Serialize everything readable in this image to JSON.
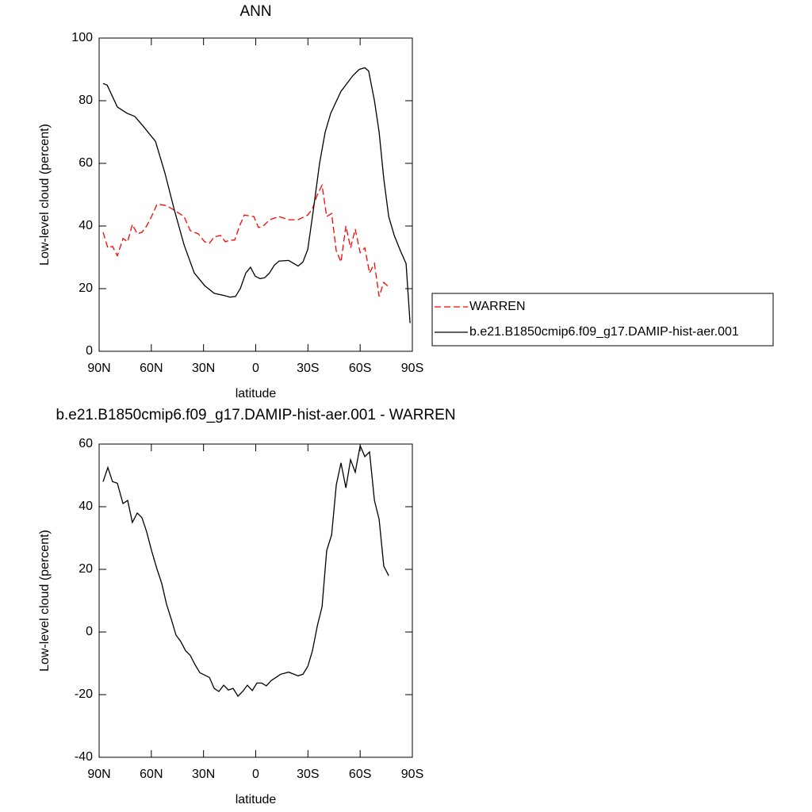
{
  "chart_data": [
    {
      "type": "line",
      "title": "ANN",
      "xlabel": "latitude",
      "ylabel": "Low-level cloud (percent)",
      "xlim": [
        90,
        -90
      ],
      "ylim": [
        0,
        100
      ],
      "xticks": [
        {
          "value": 90,
          "label": "90N"
        },
        {
          "value": 60,
          "label": "60N"
        },
        {
          "value": 30,
          "label": "30N"
        },
        0,
        {
          "value": -30,
          "label": "30S"
        },
        {
          "value": -60,
          "label": "60S"
        },
        {
          "value": -90,
          "label": "90S"
        }
      ],
      "yticks": [
        0,
        20,
        40,
        60,
        80,
        100
      ],
      "legend": "right",
      "series": [
        {
          "name": "WARREN",
          "color": "#ff0000",
          "dash": true,
          "x": [
            87.7,
            85.0,
            82.3,
            79.5,
            76.3,
            73.6,
            70.9,
            68.1,
            65.4,
            62.7,
            59.9,
            56.7,
            51.3,
            46.7,
            41.2,
            37.6,
            33.0,
            29.4,
            26.6,
            23.9,
            20.3,
            17.5,
            14.8,
            12.1,
            9.3,
            6.6,
            1.1,
            -1.6,
            -4.3,
            -8.0,
            -13.4,
            -18.9,
            -24.4,
            -29.9,
            -32.6,
            -35.4,
            -38.1,
            -40.8,
            -43.6,
            -46.3,
            -49.0,
            -51.8,
            -54.5,
            -57.2,
            -60.0,
            -62.7,
            -65.4,
            -68.2,
            -70.9,
            -73.6,
            -76.4
          ],
          "values": [
            38,
            33,
            33.5,
            30.5,
            36,
            35,
            40.5,
            37.5,
            38,
            40,
            43,
            47,
            46.5,
            45,
            43,
            38.5,
            37.5,
            35,
            34.5,
            36.5,
            37,
            35,
            35.5,
            35.5,
            40,
            43.5,
            43,
            39.5,
            40,
            42,
            43,
            42,
            42,
            43.5,
            45.5,
            50,
            53,
            43,
            44,
            32,
            28.5,
            40,
            33,
            39,
            31.5,
            33,
            25,
            28,
            17.5,
            22,
            20.5
          ]
        },
        {
          "name": "b.e21.B1850cmip6.f09_g17.DAMIP-hist-aer.001",
          "color": "#000000",
          "dash": false,
          "x": [
            87.7,
            85.4,
            79.5,
            74.0,
            69.5,
            64.9,
            57.6,
            52.2,
            46.7,
            41.2,
            35.3,
            29.4,
            23.9,
            18.0,
            14.8,
            11.6,
            8.9,
            5.7,
            3.0,
            0.3,
            -2.5,
            -5.2,
            -7.9,
            -10.7,
            -13.4,
            -18.9,
            -24.4,
            -27.1,
            -29.9,
            -33.1,
            -36.7,
            -39.9,
            -43.1,
            -49.0,
            -55.8,
            -59.5,
            -62.7,
            -64.9,
            -68.2,
            -70.9,
            -73.6,
            -76.4,
            -79.6,
            -83.2,
            -86.4,
            -88.7
          ],
          "values": [
            85.5,
            85,
            78,
            76,
            75,
            72,
            67,
            57,
            45,
            34,
            25,
            21,
            18.5,
            17.8,
            17.3,
            17.5,
            20,
            25,
            26.8,
            24,
            23.2,
            23.5,
            25,
            27.5,
            28.8,
            29,
            27.2,
            28.5,
            32.5,
            45,
            60,
            70,
            76,
            83,
            88,
            90,
            90.5,
            89.5,
            80,
            70,
            55,
            43,
            37,
            32,
            28,
            9
          ]
        }
      ]
    },
    {
      "type": "line",
      "title": "b.e21.B1850cmip6.f09_g17.DAMIP-hist-aer.001 - WARREN",
      "xlabel": "latitude",
      "ylabel": "Low-level cloud (percent)",
      "xlim": [
        90,
        -90
      ],
      "ylim": [
        -40,
        60
      ],
      "xticks": [
        {
          "value": 90,
          "label": "90N"
        },
        {
          "value": 60,
          "label": "60N"
        },
        {
          "value": 30,
          "label": "30N"
        },
        0,
        {
          "value": -30,
          "label": "30S"
        },
        {
          "value": -60,
          "label": "60S"
        },
        {
          "value": -90,
          "label": "90S"
        }
      ],
      "yticks": [
        -40,
        -20,
        0,
        20,
        40,
        60
      ],
      "series": [
        {
          "color": "#000000",
          "dash": false,
          "x": [
            87.7,
            85.0,
            82.3,
            79.5,
            76.3,
            73.6,
            70.9,
            68.1,
            65.4,
            62.7,
            59.9,
            56.7,
            54.0,
            51.3,
            48.5,
            45.8,
            43.1,
            40.3,
            37.6,
            34.8,
            32.1,
            26.6,
            23.9,
            21.2,
            18.4,
            15.7,
            13.0,
            10.2,
            7.5,
            4.8,
            2.0,
            -0.7,
            -3.4,
            -6.1,
            -8.9,
            -11.6,
            -14.3,
            -18.9,
            -24.4,
            -27.1,
            -29.9,
            -32.6,
            -35.4,
            -38.1,
            -40.8,
            -43.6,
            -46.3,
            -49.0,
            -51.8,
            -54.5,
            -57.2,
            -60.0,
            -62.7,
            -65.4,
            -68.2,
            -70.9,
            -73.6,
            -76.4
          ],
          "values": [
            48,
            52.5,
            48,
            47.5,
            41,
            42,
            35,
            38,
            36.5,
            32,
            26,
            20,
            15.5,
            9,
            4,
            -1,
            -3,
            -6,
            -7.5,
            -10.5,
            -13,
            -14.5,
            -18,
            -19,
            -17,
            -18.5,
            -18,
            -20.5,
            -19,
            -17,
            -18.7,
            -16.3,
            -16.3,
            -17.2,
            -15.5,
            -14.5,
            -13.5,
            -12.8,
            -14,
            -13.5,
            -11,
            -6,
            2,
            8,
            26,
            31,
            47,
            54,
            46,
            55,
            51,
            59.5,
            56,
            57.5,
            42,
            36,
            21,
            18
          ]
        }
      ]
    }
  ]
}
